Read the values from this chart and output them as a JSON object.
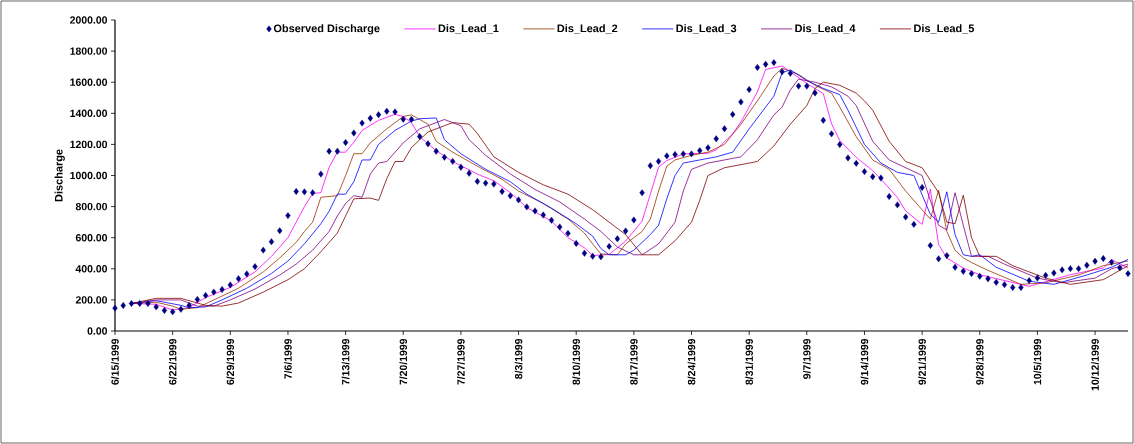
{
  "chart_data": {
    "type": "line",
    "ylabel": "Discharge",
    "legend": "top",
    "x": [
      "1999-06-15",
      "1999-06-16",
      "1999-06-17",
      "1999-06-18",
      "1999-06-19",
      "1999-06-20",
      "1999-06-21",
      "1999-06-22",
      "1999-06-23",
      "1999-06-24",
      "1999-06-25",
      "1999-06-26",
      "1999-06-27",
      "1999-06-28",
      "1999-06-29",
      "1999-06-30",
      "1999-07-01",
      "1999-07-02",
      "1999-07-03",
      "1999-07-04",
      "1999-07-05",
      "1999-07-06",
      "1999-07-07",
      "1999-07-08",
      "1999-07-09",
      "1999-07-10",
      "1999-07-11",
      "1999-07-12",
      "1999-07-13",
      "1999-07-14",
      "1999-07-15",
      "1999-07-16",
      "1999-07-17",
      "1999-07-18",
      "1999-07-19",
      "1999-07-20",
      "1999-07-21",
      "1999-07-22",
      "1999-07-23",
      "1999-07-24",
      "1999-07-25",
      "1999-07-26",
      "1999-07-27",
      "1999-07-28",
      "1999-07-29",
      "1999-07-30",
      "1999-07-31",
      "1999-08-01",
      "1999-08-02",
      "1999-08-03",
      "1999-08-04",
      "1999-08-05",
      "1999-08-06",
      "1999-08-07",
      "1999-08-08",
      "1999-08-09",
      "1999-08-10",
      "1999-08-11",
      "1999-08-12",
      "1999-08-13",
      "1999-08-14",
      "1999-08-15",
      "1999-08-16",
      "1999-08-17",
      "1999-08-18",
      "1999-08-19",
      "1999-08-20",
      "1999-08-21",
      "1999-08-22",
      "1999-08-23",
      "1999-08-24",
      "1999-08-25",
      "1999-08-26",
      "1999-08-27",
      "1999-08-28",
      "1999-08-29",
      "1999-08-30",
      "1999-08-31",
      "1999-09-01",
      "1999-09-02",
      "1999-09-03",
      "1999-09-04",
      "1999-09-05",
      "1999-09-06",
      "1999-09-07",
      "1999-09-08",
      "1999-09-09",
      "1999-09-10",
      "1999-09-11",
      "1999-09-12",
      "1999-09-13",
      "1999-09-14",
      "1999-09-15",
      "1999-09-16",
      "1999-09-17",
      "1999-09-18",
      "1999-09-19",
      "1999-09-20",
      "1999-09-21",
      "1999-09-22",
      "1999-09-23",
      "1999-09-24",
      "1999-09-25",
      "1999-09-26",
      "1999-09-27",
      "1999-09-28",
      "1999-09-29",
      "1999-09-30",
      "1999-10-01",
      "1999-10-02",
      "1999-10-03",
      "1999-10-04",
      "1999-10-05",
      "1999-10-06",
      "1999-10-07",
      "1999-10-08",
      "1999-10-09",
      "1999-10-10",
      "1999-10-11",
      "1999-10-12",
      "1999-10-13",
      "1999-10-14",
      "1999-10-15",
      "1999-10-16"
    ],
    "xlim": [
      "1999-06-15",
      "1999-10-16"
    ],
    "xticks": [
      {
        "value": "1999-06-15",
        "label": "6/15/1999"
      },
      {
        "value": "1999-06-22",
        "label": "6/22/1999"
      },
      {
        "value": "1999-06-29",
        "label": "6/29/1999"
      },
      {
        "value": "1999-07-06",
        "label": "7/6/1999"
      },
      {
        "value": "1999-07-13",
        "label": "7/13/1999"
      },
      {
        "value": "1999-07-20",
        "label": "7/20/1999"
      },
      {
        "value": "1999-07-27",
        "label": "7/27/1999"
      },
      {
        "value": "1999-08-03",
        "label": "8/3/1999"
      },
      {
        "value": "1999-08-10",
        "label": "8/10/1999"
      },
      {
        "value": "1999-08-17",
        "label": "8/17/1999"
      },
      {
        "value": "1999-08-24",
        "label": "8/24/1999"
      },
      {
        "value": "1999-08-31",
        "label": "8/31/1999"
      },
      {
        "value": "1999-09-07",
        "label": "9/7/1999"
      },
      {
        "value": "1999-09-14",
        "label": "9/14/1999"
      },
      {
        "value": "1999-09-21",
        "label": "9/21/1999"
      },
      {
        "value": "1999-09-28",
        "label": "9/28/1999"
      },
      {
        "value": "1999-10-05",
        "label": "10/5/1999"
      },
      {
        "value": "1999-10-12",
        "label": "10/12/1999"
      }
    ],
    "ylim": [
      0,
      2000
    ],
    "yticks": [
      {
        "value": 0,
        "label": "0.00"
      },
      {
        "value": 200,
        "label": "200.00"
      },
      {
        "value": 400,
        "label": "400.00"
      },
      {
        "value": 600,
        "label": "600.00"
      },
      {
        "value": 800,
        "label": "800.00"
      },
      {
        "value": 1000,
        "label": "1000.00"
      },
      {
        "value": 1200,
        "label": "1200.00"
      },
      {
        "value": 1400,
        "label": "1400.00"
      },
      {
        "value": 1600,
        "label": "1600.00"
      },
      {
        "value": 1800,
        "label": "1800.00"
      },
      {
        "value": 2000,
        "label": "2000.00"
      }
    ],
    "series": [
      {
        "name": "Observed Discharge",
        "type": "scatter",
        "marker": "diamond",
        "color": "#000080",
        "values": [
          147,
          164,
          177,
          177,
          177,
          155,
          132,
          123,
          140,
          164,
          203,
          229,
          250,
          267,
          296,
          336,
          367,
          414,
          520,
          574,
          645,
          742,
          897,
          895,
          889,
          1009,
          1156,
          1156,
          1212,
          1273,
          1337,
          1368,
          1391,
          1413,
          1409,
          1361,
          1361,
          1251,
          1204,
          1156,
          1117,
          1091,
          1053,
          1014,
          962,
          951,
          945,
          897,
          869,
          843,
          798,
          772,
          746,
          712,
          669,
          628,
          563,
          500,
          481,
          477,
          544,
          593,
          643,
          714,
          889,
          1063,
          1091,
          1126,
          1135,
          1139,
          1139,
          1160,
          1178,
          1236,
          1301,
          1393,
          1473,
          1553,
          1695,
          1715,
          1726,
          1667,
          1657,
          1575,
          1575,
          1531,
          1355,
          1268,
          1199,
          1113,
          1078,
          1025,
          992,
          984,
          865,
          811,
          733,
          686,
          923,
          550,
          464,
          485,
          410,
          384,
          369,
          352,
          336,
          313,
          298,
          280,
          280,
          324,
          341,
          358,
          373,
          393,
          401,
          401,
          423,
          449,
          466,
          442,
          406,
          369
        ]
      },
      {
        "name": "Dis_Lead_1",
        "color": "#ff00ff",
        "x": [
          "1999-06-17",
          "1999-06-20",
          "1999-06-22",
          "1999-06-24",
          "1999-06-26",
          "1999-06-29",
          "1999-07-02",
          "1999-07-04",
          "1999-07-05",
          "1999-07-06",
          "1999-07-07",
          "1999-07-08",
          "1999-07-09",
          "1999-07-10",
          "1999-07-11",
          "1999-07-12",
          "1999-07-13",
          "1999-07-14",
          "1999-07-15",
          "1999-07-17",
          "1999-07-19",
          "1999-07-20",
          "1999-07-21",
          "1999-07-22",
          "1999-07-23",
          "1999-07-24",
          "1999-07-26",
          "1999-07-27",
          "1999-07-29",
          "1999-07-31",
          "1999-08-02",
          "1999-08-04",
          "1999-08-07",
          "1999-08-09",
          "1999-08-11",
          "1999-08-12",
          "1999-08-14",
          "1999-08-16",
          "1999-08-18",
          "1999-08-20",
          "1999-08-21",
          "1999-08-22",
          "1999-08-23",
          "1999-08-26",
          "1999-08-27",
          "1999-08-29",
          "1999-08-30",
          "1999-09-01",
          "1999-09-02",
          "1999-09-04",
          "1999-09-05",
          "1999-09-07",
          "1999-09-09",
          "1999-09-10",
          "1999-09-11",
          "1999-09-13",
          "1999-09-15",
          "1999-09-16",
          "1999-09-18",
          "1999-09-19",
          "1999-09-21",
          "1999-09-22",
          "1999-09-23",
          "1999-09-24",
          "1999-09-26",
          "1999-09-28",
          "1999-10-04",
          "1999-10-05",
          "1999-10-09",
          "1999-10-13",
          "1999-10-14",
          "1999-10-16"
        ],
        "values": [
          177,
          172,
          135,
          150,
          215,
          280,
          380,
          480,
          540,
          600,
          700,
          800,
          884,
          890,
          1053,
          1150,
          1150,
          1214,
          1290,
          1355,
          1393,
          1380,
          1340,
          1250,
          1204,
          1160,
          1090,
          1063,
          1009,
          966,
          890,
          794,
          707,
          600,
          535,
          485,
          492,
          578,
          707,
          1053,
          1096,
          1117,
          1139,
          1143,
          1165,
          1268,
          1344,
          1538,
          1682,
          1704,
          1667,
          1592,
          1527,
          1333,
          1225,
          1117,
          1031,
          977,
          859,
          772,
          686,
          912,
          556,
          470,
          405,
          362,
          287,
          302,
          362,
          405,
          459,
          405
        ]
      },
      {
        "name": "Dis_Lead_2",
        "color": "#993300",
        "x": [
          "1999-06-17",
          "1999-06-20",
          "1999-06-22",
          "1999-06-23",
          "1999-06-25",
          "1999-06-27",
          "1999-06-30",
          "1999-07-03",
          "1999-07-05",
          "1999-07-07",
          "1999-07-08",
          "1999-07-09",
          "1999-07-10",
          "1999-07-12",
          "1999-07-13",
          "1999-07-14",
          "1999-07-15",
          "1999-07-16",
          "1999-07-18",
          "1999-07-20",
          "1999-07-21",
          "1999-07-23",
          "1999-07-24",
          "1999-07-26",
          "1999-07-29",
          "1999-08-01",
          "1999-08-03",
          "1999-08-06",
          "1999-08-09",
          "1999-08-11",
          "1999-08-12",
          "1999-08-13",
          "1999-08-15",
          "1999-08-16",
          "1999-08-18",
          "1999-08-19",
          "1999-08-20",
          "1999-08-21",
          "1999-08-22",
          "1999-08-24",
          "1999-08-26",
          "1999-08-28",
          "1999-08-30",
          "1999-09-01",
          "1999-09-03",
          "1999-09-04",
          "1999-09-06",
          "1999-09-08",
          "1999-09-10",
          "1999-09-11",
          "1999-09-13",
          "1999-09-15",
          "1999-09-17",
          "1999-09-19",
          "1999-09-21",
          "1999-09-22",
          "1999-09-23",
          "1999-09-24",
          "1999-09-25",
          "1999-09-26",
          "1999-09-27",
          "1999-09-29",
          "1999-10-03",
          "1999-10-06",
          "1999-10-10",
          "1999-10-13",
          "1999-10-16"
        ],
        "values": [
          177,
          185,
          160,
          140,
          150,
          200,
          275,
          380,
          470,
          570,
          640,
          700,
          860,
          870,
          1000,
          1140,
          1140,
          1210,
          1300,
          1380,
          1390,
          1330,
          1220,
          1150,
          1060,
          975,
          900,
          820,
          720,
          630,
          560,
          495,
          490,
          560,
          640,
          720,
          900,
          1060,
          1100,
          1130,
          1150,
          1200,
          1330,
          1480,
          1640,
          1690,
          1650,
          1580,
          1530,
          1440,
          1250,
          1100,
          1040,
          900,
          780,
          720,
          906,
          640,
          520,
          470,
          440,
          390,
          300,
          310,
          360,
          420,
          450
        ]
      },
      {
        "name": "Dis_Lead_3",
        "color": "#0000ff",
        "x": [
          "1999-06-17",
          "1999-06-20",
          "1999-06-23",
          "1999-06-24",
          "1999-06-26",
          "1999-06-28",
          "1999-07-01",
          "1999-07-04",
          "1999-07-06",
          "1999-07-08",
          "1999-07-10",
          "1999-07-11",
          "1999-07-12",
          "1999-07-13",
          "1999-07-14",
          "1999-07-15",
          "1999-07-16",
          "1999-07-17",
          "1999-07-19",
          "1999-07-21",
          "1999-07-22",
          "1999-07-24",
          "1999-07-25",
          "1999-07-27",
          "1999-07-30",
          "1999-08-02",
          "1999-08-04",
          "1999-08-07",
          "1999-08-10",
          "1999-08-12",
          "1999-08-13",
          "1999-08-14",
          "1999-08-16",
          "1999-08-17",
          "1999-08-19",
          "1999-08-20",
          "1999-08-21",
          "1999-08-22",
          "1999-08-23",
          "1999-08-25",
          "1999-08-27",
          "1999-08-29",
          "1999-08-31",
          "1999-09-02",
          "1999-09-03",
          "1999-09-04",
          "1999-09-05",
          "1999-09-07",
          "1999-09-09",
          "1999-09-11",
          "1999-09-12",
          "1999-09-14",
          "1999-09-16",
          "1999-09-18",
          "1999-09-20",
          "1999-09-22",
          "1999-09-23",
          "1999-09-24",
          "1999-09-25",
          "1999-09-26",
          "1999-09-27",
          "1999-09-28",
          "1999-09-30",
          "1999-10-04",
          "1999-10-07",
          "1999-10-11",
          "1999-10-14",
          "1999-10-16"
        ],
        "values": [
          177,
          195,
          165,
          150,
          155,
          200,
          275,
          370,
          450,
          560,
          690,
          770,
          880,
          880,
          960,
          1100,
          1100,
          1200,
          1290,
          1350,
          1365,
          1370,
          1230,
          1140,
          1040,
          960,
          880,
          790,
          690,
          610,
          530,
          490,
          490,
          520,
          620,
          680,
          850,
          1000,
          1080,
          1100,
          1120,
          1150,
          1300,
          1440,
          1510,
          1660,
          1680,
          1610,
          1560,
          1520,
          1420,
          1200,
          1080,
          1020,
          1000,
          750,
          700,
          895,
          620,
          490,
          480,
          490,
          410,
          320,
          300,
          360,
          410,
          460
        ]
      },
      {
        "name": "Dis_Lead_4",
        "color": "#800080",
        "x": [
          "1999-06-17",
          "1999-06-20",
          "1999-06-23",
          "1999-06-25",
          "1999-06-27",
          "1999-06-29",
          "1999-07-02",
          "1999-07-05",
          "1999-07-07",
          "1999-07-09",
          "1999-07-11",
          "1999-07-12",
          "1999-07-13",
          "1999-07-14",
          "1999-07-15",
          "1999-07-16",
          "1999-07-17",
          "1999-07-18",
          "1999-07-20",
          "1999-07-22",
          "1999-07-24",
          "1999-07-25",
          "1999-07-27",
          "1999-07-28",
          "1999-07-30",
          "1999-08-02",
          "1999-08-05",
          "1999-08-08",
          "1999-08-11",
          "1999-08-13",
          "1999-08-15",
          "1999-08-17",
          "1999-08-18",
          "1999-08-20",
          "1999-08-22",
          "1999-08-23",
          "1999-08-24",
          "1999-08-26",
          "1999-08-28",
          "1999-08-30",
          "1999-09-01",
          "1999-09-03",
          "1999-09-04",
          "1999-09-05",
          "1999-09-06",
          "1999-09-08",
          "1999-09-10",
          "1999-09-12",
          "1999-09-13",
          "1999-09-15",
          "1999-09-17",
          "1999-09-19",
          "1999-09-21",
          "1999-09-23",
          "1999-09-24",
          "1999-09-25",
          "1999-09-26",
          "1999-09-27",
          "1999-09-29",
          "1999-10-01",
          "1999-10-05",
          "1999-10-08",
          "1999-10-12",
          "1999-10-14",
          "1999-10-16"
        ],
        "values": [
          177,
          200,
          200,
          160,
          160,
          200,
          270,
          360,
          430,
          520,
          640,
          740,
          820,
          870,
          860,
          1010,
          1080,
          1090,
          1210,
          1300,
          1340,
          1360,
          1320,
          1230,
          1130,
          1010,
          910,
          830,
          720,
          640,
          540,
          490,
          490,
          560,
          700,
          900,
          1040,
          1080,
          1100,
          1120,
          1230,
          1390,
          1440,
          1550,
          1620,
          1600,
          1570,
          1510,
          1450,
          1220,
          1100,
          1050,
          1000,
          680,
          650,
          889,
          680,
          480,
          480,
          430,
          340,
          310,
          340,
          400,
          430
        ]
      },
      {
        "name": "Dis_Lead_5",
        "color": "#800000",
        "x": [
          "1999-06-17",
          "1999-06-20",
          "1999-06-23",
          "1999-06-26",
          "1999-06-28",
          "1999-06-30",
          "1999-07-03",
          "1999-07-06",
          "1999-07-08",
          "1999-07-10",
          "1999-07-12",
          "1999-07-13",
          "1999-07-14",
          "1999-07-16",
          "1999-07-17",
          "1999-07-18",
          "1999-07-19",
          "1999-07-20",
          "1999-07-21",
          "1999-07-23",
          "1999-07-25",
          "1999-07-26",
          "1999-07-28",
          "1999-07-29",
          "1999-07-31",
          "1999-08-03",
          "1999-08-06",
          "1999-08-09",
          "1999-08-12",
          "1999-08-14",
          "1999-08-16",
          "1999-08-18",
          "1999-08-20",
          "1999-08-22",
          "1999-08-24",
          "1999-08-25",
          "1999-08-26",
          "1999-08-28",
          "1999-08-30",
          "1999-09-01",
          "1999-09-03",
          "1999-09-05",
          "1999-09-07",
          "1999-09-08",
          "1999-09-09",
          "1999-09-11",
          "1999-09-13",
          "1999-09-14",
          "1999-09-15",
          "1999-09-17",
          "1999-09-19",
          "1999-09-21",
          "1999-09-23",
          "1999-09-24",
          "1999-09-25",
          "1999-09-26",
          "1999-09-27",
          "1999-09-28",
          "1999-09-30",
          "1999-10-02",
          "1999-10-06",
          "1999-10-09",
          "1999-10-13",
          "1999-10-15",
          "1999-10-16"
        ],
        "values": [
          177,
          210,
          210,
          165,
          160,
          180,
          250,
          330,
          400,
          510,
          630,
          740,
          850,
          855,
          840,
          980,
          1090,
          1090,
          1180,
          1280,
          1320,
          1340,
          1330,
          1270,
          1120,
          1020,
          940,
          880,
          780,
          700,
          620,
          490,
          490,
          580,
          700,
          840,
          1000,
          1050,
          1070,
          1090,
          1190,
          1330,
          1450,
          1560,
          1600,
          1580,
          1530,
          1480,
          1420,
          1220,
          1090,
          1050,
          890,
          700,
          690,
          873,
          600,
          480,
          480,
          420,
          340,
          300,
          330,
          390,
          420
        ]
      }
    ]
  }
}
